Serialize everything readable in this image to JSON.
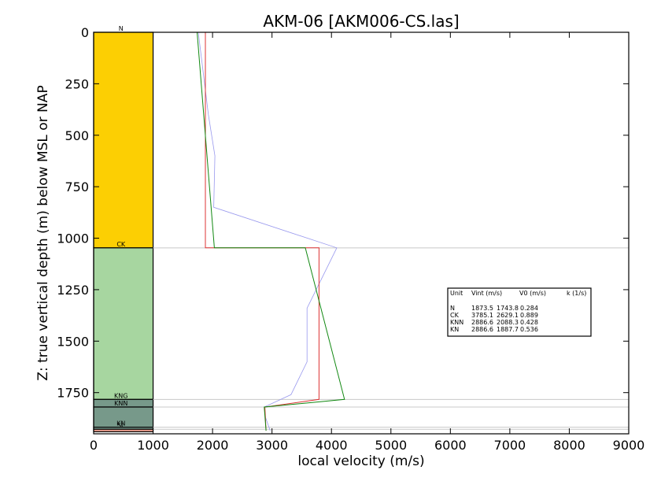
{
  "chart_data": {
    "type": "line",
    "title": "AKM-06 [AKM006-CS.las]",
    "xlabel": "local velocity (m/s)",
    "ylabel": "Z: true vertical depth (m) below MSL or NAP",
    "xlim": [
      0,
      9000
    ],
    "ylim": [
      1950,
      0
    ],
    "y_inverted": true,
    "x_ticks": [
      "0",
      "1000",
      "2000",
      "3000",
      "4000",
      "5000",
      "6000",
      "7000",
      "8000",
      "9000"
    ],
    "y_ticks": [
      "0",
      "250",
      "500",
      "750",
      "1000",
      "1250",
      "1500",
      "1750"
    ],
    "grid": false,
    "lithology_column": {
      "x_range": [
        0,
        1000
      ],
      "units": [
        {
          "name": "N",
          "top": 0,
          "base": 1047,
          "color": "#fccf03"
        },
        {
          "name": "CK",
          "top": 1047,
          "base": 1783,
          "color": "#a7d6a0"
        },
        {
          "name": "KNG",
          "top": 1783,
          "base": 1820,
          "color": "#77998a"
        },
        {
          "name": "KNN",
          "top": 1820,
          "base": 1918,
          "color": "#77998a"
        },
        {
          "name": "KN",
          "top": 1918,
          "base": 1928,
          "color": "#7fa597"
        },
        {
          "name": "SL",
          "top": 1928,
          "base": 1940,
          "color": "#f0a090"
        }
      ]
    },
    "horizon_lines": [
      1047,
      1783,
      1820,
      1918,
      1928
    ],
    "series": [
      {
        "color": "#9999ee",
        "points": [
          [
            1760,
            0
          ],
          [
            1930,
            400
          ],
          [
            2040,
            600
          ],
          [
            2020,
            850
          ],
          [
            4090,
            1047
          ],
          [
            3590,
            1340
          ],
          [
            3590,
            1600
          ],
          [
            3320,
            1760
          ],
          [
            2870,
            1820
          ],
          [
            2890,
            1870
          ],
          [
            2970,
            1935
          ]
        ]
      },
      {
        "color": "#dd3333",
        "points": [
          [
            1880,
            0
          ],
          [
            1880,
            1047
          ],
          [
            3790,
            1047
          ],
          [
            3790,
            1783
          ],
          [
            2880,
            1820
          ],
          [
            2900,
            1935
          ]
        ]
      },
      {
        "color": "#118811",
        "points": [
          [
            1740,
            0
          ],
          [
            2030,
            1047
          ],
          [
            3560,
            1047
          ],
          [
            4220,
            1783
          ],
          [
            2870,
            1820
          ],
          [
            2900,
            1935
          ]
        ]
      }
    ],
    "legend": {
      "placement": "right",
      "header": [
        "Unit",
        "Vint (m/s)",
        "V0 (m/s)",
        "k (1/s)"
      ],
      "rows": [
        [
          "N",
          "1873.5",
          "1743.8",
          "0.284"
        ],
        [
          "CK",
          "3785.1",
          "2629.1",
          "0.889"
        ],
        [
          "KNN",
          "2886.6",
          "2088.3",
          "0.428"
        ],
        [
          "KN",
          "2886.6",
          "1887.7",
          "0.536"
        ]
      ]
    }
  }
}
